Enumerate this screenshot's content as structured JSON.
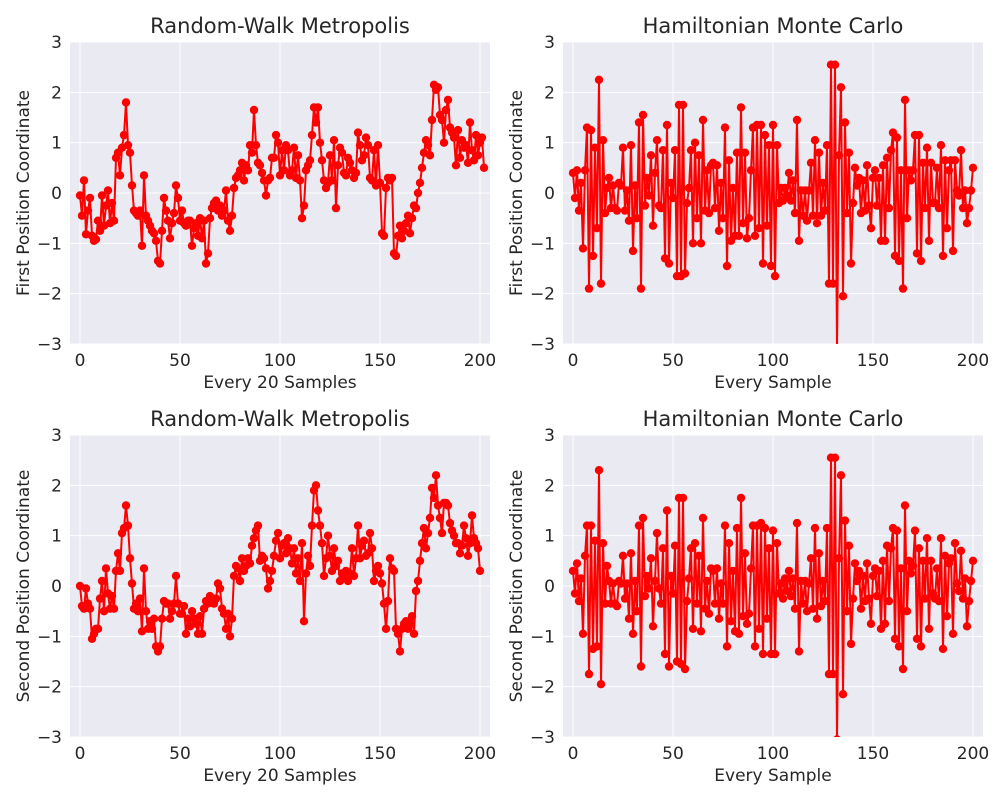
{
  "chart_data": [
    {
      "type": "line",
      "title": "Random-Walk Metropolis",
      "xlabel": "Every 20 Samples",
      "ylabel": "First Position Coordinate",
      "xlim": [
        -5,
        205
      ],
      "ylim": [
        -3,
        3
      ],
      "xticks": [
        0,
        50,
        100,
        150,
        200
      ],
      "yticks": [
        -3,
        -2,
        -1,
        0,
        1,
        2,
        3
      ],
      "grid": true,
      "marker": "circle",
      "color": "#ff0000",
      "series": [
        {
          "values": [
            -0.05,
            -0.45,
            0.25,
            -0.82,
            -0.35,
            -0.1,
            -0.85,
            -0.95,
            -0.92,
            -0.55,
            -0.75,
            -0.05,
            -0.65,
            -0.25,
            0.05,
            -0.6,
            -0.2,
            -0.55,
            0.7,
            0.8,
            0.35,
            0.9,
            1.15,
            1.8,
            0.95,
            0.8,
            0.15,
            -0.35,
            -0.4,
            -0.45,
            -0.35,
            -1.05,
            0.35,
            -0.45,
            -0.55,
            -0.65,
            -0.75,
            -0.8,
            -0.95,
            -1.35,
            -1.4,
            -0.75,
            -0.1,
            -0.35,
            -0.55,
            -0.9,
            -0.6,
            -0.4,
            0.15,
            -0.1,
            -0.55,
            -0.35,
            -0.6,
            -0.65,
            -0.55,
            -0.55,
            -1.05,
            -0.7,
            -0.6,
            -0.85,
            -0.5,
            -0.9,
            -0.55,
            -1.4,
            -1.2,
            -0.5,
            -0.3,
            -0.2,
            -0.15,
            -0.35,
            -0.25,
            -0.45,
            -0.35,
            0.05,
            -0.55,
            -0.75,
            -0.45,
            0.1,
            0.3,
            0.35,
            0.45,
            0.6,
            0.25,
            0.55,
            0.45,
            0.95,
            0.8,
            1.65,
            0.95,
            0.6,
            0.55,
            0.4,
            0.25,
            -0.05,
            0.25,
            0.3,
            0.7,
            0.7,
            1.15,
            1.0,
            0.35,
            0.85,
            0.45,
            0.95,
            0.85,
            0.35,
            0.45,
            0.9,
            0.3,
            0.75,
            0.25,
            -0.5,
            -0.25,
            0.45,
            0.55,
            0.65,
            1.15,
            1.7,
            1.4,
            1.7,
            1.0,
            0.65,
            0.25,
            0.1,
            0.2,
            0.75,
            0.25,
            1.05,
            -0.3,
            0.55,
            0.9,
            0.8,
            0.4,
            0.35,
            0.7,
            0.6,
            0.45,
            0.3,
            0.4,
            1.2,
            0.95,
            0.65,
            0.75,
            1.1,
            0.95,
            0.3,
            0.25,
            0.85,
            0.15,
            0.95,
            0.2,
            -0.8,
            -0.85,
            0.1,
            0.3,
            0.25,
            0.3,
            -1.2,
            -1.25,
            -0.85,
            -0.65,
            -0.9,
            -0.75,
            -0.6,
            -0.45,
            -0.8,
            -0.5,
            -0.25,
            -0.3,
            0.0,
            0.2,
            0.5,
            0.8,
            1.05,
            0.95,
            0.75,
            1.45,
            2.15,
            2.05,
            2.1,
            1.55,
            1.45,
            1.0,
            1.65,
            1.85,
            1.3,
            1.2,
            1.1,
            0.55,
            1.25,
            0.7,
            1.05,
            0.9,
            0.95,
            0.6,
            1.4,
            0.85,
            0.65,
            1.15,
            0.75,
            1.0,
            1.1,
            0.5
          ]
        }
      ]
    },
    {
      "type": "line",
      "title": "Hamiltonian Monte Carlo",
      "xlabel": "Every Sample",
      "ylabel": "First Position Coordinate",
      "xlim": [
        -5,
        205
      ],
      "ylim": [
        -3,
        3
      ],
      "xticks": [
        0,
        50,
        100,
        150,
        200
      ],
      "yticks": [
        -3,
        -2,
        -1,
        0,
        1,
        2,
        3
      ],
      "grid": true,
      "marker": "circle",
      "color": "#ff0000",
      "series": [
        {
          "values": [
            0.4,
            -0.1,
            0.45,
            -0.35,
            0.2,
            -1.1,
            0.45,
            1.3,
            -1.9,
            1.25,
            -1.25,
            0.9,
            -0.7,
            2.25,
            -1.8,
            1.05,
            -0.4,
            0.1,
            0.3,
            -0.3,
            0.15,
            -0.3,
            -0.35,
            0.2,
            0.15,
            0.9,
            -0.35,
            0.05,
            -0.55,
            0.95,
            -1.15,
            0.15,
            -0.5,
            1.4,
            -1.9,
            1.55,
            -0.25,
            0.3,
            -0.05,
            0.75,
            -0.65,
            0.4,
            1.05,
            -0.25,
            -0.3,
            0.85,
            -1.3,
            1.35,
            -1.4,
            0.2,
            -0.1,
            0.85,
            -1.65,
            1.75,
            -1.65,
            1.75,
            -1.6,
            -0.2,
            0.1,
            0.85,
            -1.0,
            1.0,
            -0.5,
            0.75,
            -1.0,
            1.45,
            -0.35,
            0.45,
            -0.4,
            0.55,
            0.6,
            -0.3,
            0.55,
            -0.75,
            0.2,
            -0.5,
            1.3,
            -1.45,
            0.65,
            -0.95,
            0.1,
            -0.85,
            0.8,
            -0.85,
            1.7,
            -0.6,
            0.8,
            -0.9,
            -0.5,
            0.45,
            1.3,
            -0.85,
            1.35,
            -0.7,
            1.35,
            -1.4,
            1.15,
            -0.65,
            0.95,
            -1.45,
            1.35,
            -1.65,
            0.95,
            -0.2,
            0.1,
            -0.15,
            0.1,
            -0.05,
            0.4,
            -0.15,
            0.25,
            -0.4,
            1.45,
            -0.95,
            0.05,
            -0.45,
            0.05,
            -0.55,
            0.05,
            0.6,
            -0.45,
            1.05,
            -0.6,
            0.8,
            -0.45,
            0.2,
            -0.35,
            0.95,
            -1.8,
            2.55,
            -1.8,
            2.55,
            -3.1,
            0.75,
            2.1,
            -2.05,
            1.4,
            -0.4,
            0.8,
            -1.4,
            -0.2,
            0.5,
            0.15,
            0.3,
            -0.4,
            0.25,
            -0.35,
            0.55,
            -0.25,
            -0.7,
            0.3,
            0.45,
            -0.25,
            0.3,
            -0.95,
            0.55,
            -0.95,
            0.7,
            -0.3,
            0.85,
            1.2,
            -1.25,
            1.1,
            -1.35,
            0.45,
            -1.9,
            1.85,
            -0.5,
            0.45,
            0.25,
            0.45,
            1.15,
            -1.2,
            1.15,
            -1.35,
            0.6,
            -0.3,
            0.9,
            -0.95,
            0.6,
            -0.2,
            -0.2,
            0.5,
            -0.3,
            0.95,
            -1.25,
            0.65,
            -0.7,
            0.45,
            0.65,
            -1.15,
            0.65,
            0.05,
            -0.05,
            0.85,
            -0.3,
            0.05,
            -0.6,
            -0.3,
            0.05,
            0.5
          ]
        }
      ]
    },
    {
      "type": "line",
      "title": "Random-Walk Metropolis",
      "xlabel": "Every 20 Samples",
      "ylabel": "Second Position Coordinate",
      "xlim": [
        -5,
        205
      ],
      "ylim": [
        -3,
        3
      ],
      "xticks": [
        0,
        50,
        100,
        150,
        200
      ],
      "yticks": [
        -3,
        -2,
        -1,
        0,
        1,
        2,
        3
      ],
      "grid": true,
      "marker": "circle",
      "color": "#ff0000",
      "series": [
        {
          "values": [
            0.0,
            -0.4,
            -0.45,
            -0.05,
            -0.35,
            -0.45,
            -1.05,
            -0.95,
            -0.85,
            -0.85,
            -0.25,
            0.1,
            -0.5,
            0.35,
            -0.15,
            -0.45,
            -0.2,
            -0.45,
            0.3,
            0.65,
            0.3,
            1.05,
            1.15,
            1.6,
            1.2,
            0.55,
            0.05,
            -0.45,
            -0.35,
            -0.5,
            -0.25,
            -0.9,
            0.35,
            -0.5,
            -0.85,
            -0.7,
            -0.85,
            -0.65,
            -1.2,
            -1.3,
            -1.2,
            -0.65,
            -0.3,
            -0.35,
            -0.35,
            -0.65,
            -0.5,
            -0.35,
            0.2,
            -0.35,
            -0.55,
            -0.55,
            -0.4,
            -0.95,
            -0.65,
            -0.8,
            -0.5,
            -0.65,
            -0.75,
            -0.95,
            -0.6,
            -0.95,
            -0.45,
            -0.3,
            -0.35,
            -0.2,
            -0.3,
            -0.35,
            -0.25,
            0.05,
            -0.05,
            -0.45,
            -0.55,
            -0.85,
            -0.55,
            -1.0,
            -0.65,
            0.2,
            0.4,
            0.35,
            0.1,
            0.55,
            0.3,
            0.4,
            0.55,
            0.45,
            0.8,
            0.95,
            1.1,
            1.2,
            0.5,
            0.6,
            0.55,
            0.35,
            -0.05,
            0.1,
            0.3,
            0.6,
            0.9,
            1.05,
            0.55,
            0.8,
            0.85,
            0.65,
            0.95,
            0.75,
            0.45,
            0.75,
            0.25,
            0.55,
            0.1,
            0.85,
            -0.7,
            0.25,
            0.6,
            0.4,
            1.2,
            1.9,
            2.0,
            1.5,
            1.2,
            0.85,
            0.2,
            0.55,
            1.0,
            0.6,
            0.3,
            0.75,
            0.4,
            0.5,
            0.1,
            0.25,
            0.2,
            0.3,
            0.1,
            0.25,
            0.75,
            0.2,
            0.55,
            1.2,
            0.55,
            0.8,
            0.9,
            0.6,
            0.65,
            1.05,
            0.75,
            0.1,
            0.3,
            0.4,
            0.25,
            0.05,
            -0.35,
            -0.85,
            -0.3,
            0.55,
            0.35,
            0.3,
            -0.85,
            -0.95,
            -1.3,
            -0.85,
            -0.75,
            -0.7,
            -0.85,
            -0.75,
            -0.6,
            -0.95,
            -0.1,
            0.1,
            0.5,
            0.85,
            1.15,
            0.75,
            1.05,
            1.35,
            1.95,
            1.75,
            2.2,
            1.6,
            1.35,
            1.05,
            1.65,
            1.65,
            1.6,
            1.25,
            1.1,
            1.0,
            0.85,
            0.85,
            0.65,
            0.8,
            1.2,
            0.95,
            0.6,
            0.85,
            1.4,
            0.95,
            0.85,
            0.75,
            0.3
          ]
        }
      ]
    },
    {
      "type": "line",
      "title": "Hamiltonian Monte Carlo",
      "xlabel": "Every Sample",
      "ylabel": "Second Position Coordinate",
      "xlim": [
        -5,
        205
      ],
      "ylim": [
        -3,
        3
      ],
      "xticks": [
        0,
        50,
        100,
        150,
        200
      ],
      "yticks": [
        -3,
        -2,
        -1,
        0,
        1,
        2,
        3
      ],
      "grid": true,
      "marker": "circle",
      "color": "#ff0000",
      "series": [
        {
          "values": [
            0.3,
            -0.15,
            0.45,
            -0.3,
            0.15,
            -0.95,
            0.6,
            1.2,
            -1.75,
            1.2,
            -1.25,
            0.9,
            -1.2,
            2.3,
            -1.95,
            0.85,
            -0.35,
            0.4,
            0.1,
            -0.35,
            0.05,
            -0.35,
            -0.4,
            0.1,
            0.05,
            0.6,
            -0.25,
            0.05,
            -0.65,
            0.65,
            -0.95,
            0.1,
            -0.5,
            1.2,
            -1.6,
            1.35,
            -0.2,
            0.2,
            -0.05,
            0.55,
            -0.8,
            0.1,
            1.05,
            -0.05,
            -0.35,
            0.75,
            -1.35,
            1.5,
            -1.6,
            0.2,
            -0.15,
            0.8,
            -1.5,
            1.75,
            -1.55,
            1.75,
            -1.65,
            -0.3,
            0.15,
            0.75,
            -0.85,
            0.85,
            -0.35,
            0.6,
            -0.9,
            1.35,
            -0.45,
            0.1,
            -0.55,
            0.35,
            0.3,
            -0.35,
            0.35,
            -0.65,
            0.05,
            -0.35,
            1.2,
            -1.2,
            0.85,
            -0.7,
            0.3,
            -0.9,
            1.15,
            -0.95,
            1.75,
            -0.6,
            0.65,
            -0.75,
            -0.55,
            0.35,
            1.2,
            -1.2,
            1.2,
            -0.85,
            1.25,
            -1.35,
            1.15,
            -0.65,
            0.75,
            -1.35,
            1.1,
            -1.35,
            0.85,
            -0.15,
            0.05,
            -0.25,
            0.15,
            -0.1,
            0.3,
            -0.2,
            0.15,
            -0.45,
            1.25,
            -1.3,
            0.1,
            -0.35,
            0.1,
            -0.5,
            0.05,
            0.55,
            -0.45,
            1.15,
            -0.65,
            0.65,
            -0.4,
            0.1,
            -0.3,
            1.15,
            -1.75,
            2.55,
            -1.75,
            2.55,
            -3.05,
            0.55,
            2.2,
            -2.15,
            1.3,
            -0.5,
            0.8,
            -1.15,
            -0.25,
            0.45,
            0.1,
            0.3,
            -0.45,
            0.2,
            -0.3,
            0.45,
            -0.25,
            -0.75,
            0.2,
            0.35,
            -0.2,
            0.3,
            -0.85,
            0.5,
            -0.75,
            0.8,
            -0.3,
            0.75,
            1.15,
            -1.05,
            1.1,
            -1.2,
            0.35,
            -1.65,
            1.6,
            -0.5,
            0.5,
            0.25,
            0.4,
            1.1,
            -1.05,
            0.75,
            -1.2,
            0.5,
            -0.25,
            0.95,
            -0.85,
            0.5,
            -0.15,
            -0.25,
            0.35,
            -0.3,
            0.95,
            -1.25,
            0.6,
            -0.6,
            0.45,
            0.55,
            -0.95,
            0.85,
            0.05,
            -0.1,
            0.7,
            -0.25,
            0.15,
            -0.8,
            -0.3,
            0.1,
            0.5
          ]
        }
      ]
    }
  ]
}
